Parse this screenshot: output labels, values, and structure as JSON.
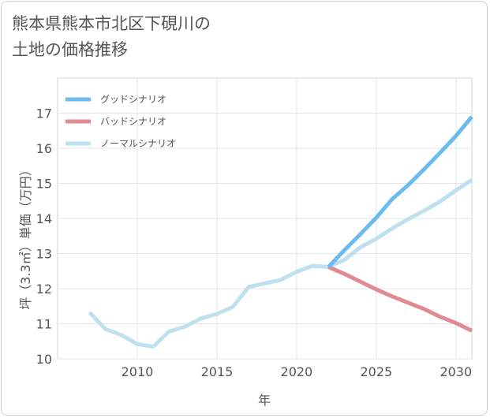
{
  "title_lines": [
    "熊本県熊本市北区下硯川の",
    "土地の価格推移"
  ],
  "colors": {
    "good": "#6bbcee",
    "bad": "#e08a92",
    "normal": "#bfe0ef",
    "grid": "#dfe6ec",
    "text": "#555555"
  },
  "chart_data": {
    "type": "line",
    "title": "熊本県熊本市北区下硯川の土地の価格推移",
    "xlabel": "年",
    "ylabel": "坪（3.3㎡）単価（万円）",
    "xlim": [
      2005,
      2031
    ],
    "ylim": [
      10,
      18
    ],
    "xticks": [
      2010,
      2015,
      2020,
      2025,
      2030
    ],
    "yticks": [
      10,
      11,
      12,
      13,
      14,
      15,
      16,
      17
    ],
    "legend_position": "top-left",
    "series": [
      {
        "key": "good",
        "name": "グッドシナリオ",
        "x": [
          2022,
          2023,
          2024,
          2025,
          2026,
          2027,
          2028,
          2029,
          2030,
          2031
        ],
        "y": [
          12.62,
          13.1,
          13.55,
          14.02,
          14.55,
          14.95,
          15.4,
          15.87,
          16.35,
          16.9
        ]
      },
      {
        "key": "bad",
        "name": "バッドシナリオ",
        "x": [
          2022,
          2023,
          2024,
          2025,
          2026,
          2027,
          2028,
          2029,
          2030,
          2031
        ],
        "y": [
          12.62,
          12.42,
          12.2,
          11.98,
          11.78,
          11.6,
          11.42,
          11.2,
          11.02,
          10.8
        ]
      },
      {
        "key": "normal",
        "name": "ノーマルシナリオ",
        "x": [
          2007,
          2008,
          2009,
          2010,
          2011,
          2012,
          2013,
          2014,
          2015,
          2016,
          2017,
          2018,
          2019,
          2020,
          2021,
          2022,
          2023,
          2024,
          2025,
          2026,
          2027,
          2028,
          2029,
          2030,
          2031
        ],
        "y": [
          11.32,
          10.85,
          10.68,
          10.42,
          10.35,
          10.78,
          10.92,
          11.15,
          11.28,
          11.48,
          12.05,
          12.15,
          12.25,
          12.48,
          12.65,
          12.62,
          12.82,
          13.18,
          13.42,
          13.72,
          13.98,
          14.22,
          14.48,
          14.8,
          15.1
        ]
      }
    ]
  }
}
